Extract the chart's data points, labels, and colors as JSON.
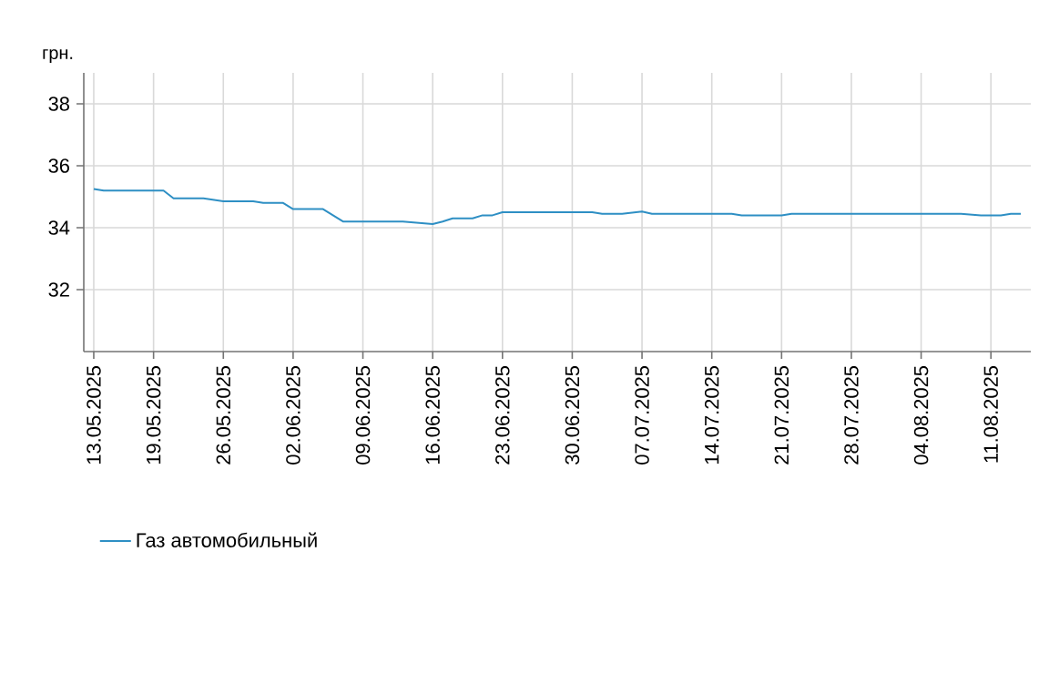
{
  "chart_data": {
    "type": "line",
    "ylabel": "грн.",
    "legend": "bottom",
    "grid": true,
    "marker": "none",
    "line_style": "solid",
    "xlim": [
      "2025-05-12",
      "2025-08-15"
    ],
    "ylim": [
      30,
      39
    ],
    "yticks": [
      32,
      34,
      36,
      38
    ],
    "xticks": [
      {
        "value": "2025-05-13",
        "label": "13.05.2025"
      },
      {
        "value": "2025-05-19",
        "label": "19.05.2025"
      },
      {
        "value": "2025-05-26",
        "label": "26.05.2025"
      },
      {
        "value": "2025-06-02",
        "label": "02.06.2025"
      },
      {
        "value": "2025-06-09",
        "label": "09.06.2025"
      },
      {
        "value": "2025-06-16",
        "label": "16.06.2025"
      },
      {
        "value": "2025-06-23",
        "label": "23.06.2025"
      },
      {
        "value": "2025-06-30",
        "label": "30.06.2025"
      },
      {
        "value": "2025-07-07",
        "label": "07.07.2025"
      },
      {
        "value": "2025-07-14",
        "label": "14.07.2025"
      },
      {
        "value": "2025-07-21",
        "label": "21.07.2025"
      },
      {
        "value": "2025-07-28",
        "label": "28.07.2025"
      },
      {
        "value": "2025-08-04",
        "label": "04.08.2025"
      },
      {
        "value": "2025-08-11",
        "label": "11.08.2025"
      }
    ],
    "series": [
      {
        "name": "Газ автомобильный",
        "color": "#2e8fc4",
        "x": [
          "2025-05-13",
          "2025-05-14",
          "2025-05-20",
          "2025-05-21",
          "2025-05-24",
          "2025-05-26",
          "2025-05-29",
          "2025-05-30",
          "2025-06-01",
          "2025-06-02",
          "2025-06-05",
          "2025-06-07",
          "2025-06-13",
          "2025-06-16",
          "2025-06-17",
          "2025-06-18",
          "2025-06-20",
          "2025-06-21",
          "2025-06-22",
          "2025-06-23",
          "2025-07-02",
          "2025-07-03",
          "2025-07-05",
          "2025-07-07",
          "2025-07-08",
          "2025-07-16",
          "2025-07-17",
          "2025-07-21",
          "2025-07-22",
          "2025-08-08",
          "2025-08-10",
          "2025-08-12",
          "2025-08-13",
          "2025-08-14"
        ],
        "values": [
          35.25,
          35.2,
          35.2,
          34.95,
          34.95,
          34.85,
          34.85,
          34.8,
          34.8,
          34.6,
          34.6,
          34.2,
          34.2,
          34.12,
          34.2,
          34.3,
          34.3,
          34.4,
          34.4,
          34.5,
          34.5,
          34.45,
          34.45,
          34.52,
          34.45,
          34.45,
          34.4,
          34.4,
          34.45,
          34.45,
          34.4,
          34.4,
          34.45,
          34.45
        ]
      }
    ]
  }
}
